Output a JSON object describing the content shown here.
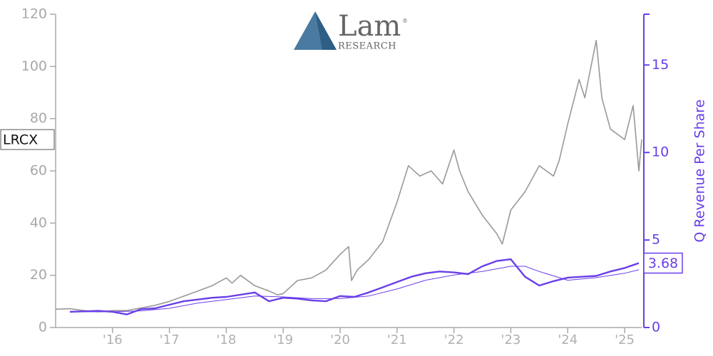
{
  "chart_data": {
    "type": "line",
    "logo": {
      "name": "Lam",
      "mark": "®",
      "subtitle": "RESEARCH"
    },
    "y2label": "Q Revenue Per Share",
    "xlim": [
      2015.0,
      2025.3
    ],
    "xticks": [
      {
        "value": 2016,
        "label": "'16"
      },
      {
        "value": 2017,
        "label": "'17"
      },
      {
        "value": 2018,
        "label": "'18"
      },
      {
        "value": 2019,
        "label": "'19"
      },
      {
        "value": 2020,
        "label": "'20"
      },
      {
        "value": 2021,
        "label": "'21"
      },
      {
        "value": 2022,
        "label": "'22"
      },
      {
        "value": 2023,
        "label": "'23"
      },
      {
        "value": 2024,
        "label": "'24"
      },
      {
        "value": 2025,
        "label": "'25"
      }
    ],
    "ylim": [
      0,
      120
    ],
    "yticks": [
      0,
      20,
      40,
      60,
      80,
      100,
      120
    ],
    "y2lim": [
      0,
      17.9
    ],
    "y2ticks": [
      0,
      5,
      10,
      15
    ],
    "series": [
      {
        "name": "LRCX",
        "color": "#999999",
        "width": 1.6,
        "x": [
          2015.0,
          2015.25,
          2015.5,
          2015.75,
          2016.0,
          2016.25,
          2016.5,
          2016.75,
          2017.0,
          2017.25,
          2017.5,
          2017.75,
          2018.0,
          2018.1,
          2018.25,
          2018.5,
          2018.75,
          2018.9,
          2019.0,
          2019.25,
          2019.5,
          2019.75,
          2020.0,
          2020.15,
          2020.2,
          2020.3,
          2020.5,
          2020.75,
          2021.0,
          2021.2,
          2021.4,
          2021.6,
          2021.8,
          2022.0,
          2022.1,
          2022.25,
          2022.5,
          2022.75,
          2022.85,
          2023.0,
          2023.25,
          2023.5,
          2023.75,
          2023.85,
          2024.0,
          2024.2,
          2024.3,
          2024.5,
          2024.6,
          2024.75,
          2025.0,
          2025.15,
          2025.25,
          2025.3
        ],
        "values": [
          7,
          7.2,
          6.5,
          6,
          6.5,
          6.5,
          7.5,
          8.5,
          10,
          12,
          14,
          16,
          19,
          17,
          20,
          16,
          14,
          12.5,
          13,
          18,
          19,
          22,
          28,
          31,
          18,
          22,
          26,
          33,
          48,
          62,
          58,
          60,
          55,
          68,
          60,
          52,
          43,
          36,
          32,
          45,
          52,
          62,
          58,
          64,
          78,
          95,
          88,
          110,
          88,
          76,
          72,
          85,
          60,
          72
        ]
      },
      {
        "color": "#6a3ee8",
        "width": 2.4,
        "axis": "y2",
        "x": [
          2015.25,
          2015.75,
          2016.0,
          2016.25,
          2016.5,
          2016.75,
          2017.0,
          2017.25,
          2017.5,
          2017.75,
          2018.0,
          2018.5,
          2018.75,
          2019.0,
          2019.25,
          2019.5,
          2019.75,
          2020.0,
          2020.25,
          2020.5,
          2020.75,
          2021.0,
          2021.25,
          2021.5,
          2021.75,
          2022.0,
          2022.25,
          2022.5,
          2022.75,
          2023.0,
          2023.25,
          2023.5,
          2023.75,
          2024.0,
          2024.25,
          2024.5,
          2024.75,
          2025.0,
          2025.25
        ],
        "values": [
          0.9,
          0.95,
          0.9,
          0.75,
          1.05,
          1.1,
          1.3,
          1.5,
          1.6,
          1.7,
          1.75,
          2.0,
          1.5,
          1.7,
          1.65,
          1.55,
          1.5,
          1.8,
          1.75,
          2.0,
          2.3,
          2.6,
          2.9,
          3.1,
          3.2,
          3.15,
          3.05,
          3.5,
          3.8,
          3.9,
          2.9,
          2.4,
          2.65,
          2.85,
          2.9,
          2.95,
          3.2,
          3.4,
          3.68
        ]
      },
      {
        "color": "#6a3ee8",
        "width": 1,
        "axis": "y2",
        "x": [
          2015.25,
          2016.0,
          2016.5,
          2017.0,
          2017.5,
          2018.0,
          2018.5,
          2019.0,
          2019.5,
          2020.0,
          2020.5,
          2021.0,
          2021.5,
          2022.0,
          2022.5,
          2023.0,
          2023.25,
          2023.5,
          2024.0,
          2024.5,
          2025.0,
          2025.25
        ],
        "values": [
          0.9,
          0.9,
          0.95,
          1.1,
          1.4,
          1.6,
          1.8,
          1.75,
          1.65,
          1.65,
          1.8,
          2.2,
          2.7,
          3.0,
          3.2,
          3.5,
          3.5,
          3.2,
          2.7,
          2.85,
          3.1,
          3.3
        ]
      }
    ]
  }
}
